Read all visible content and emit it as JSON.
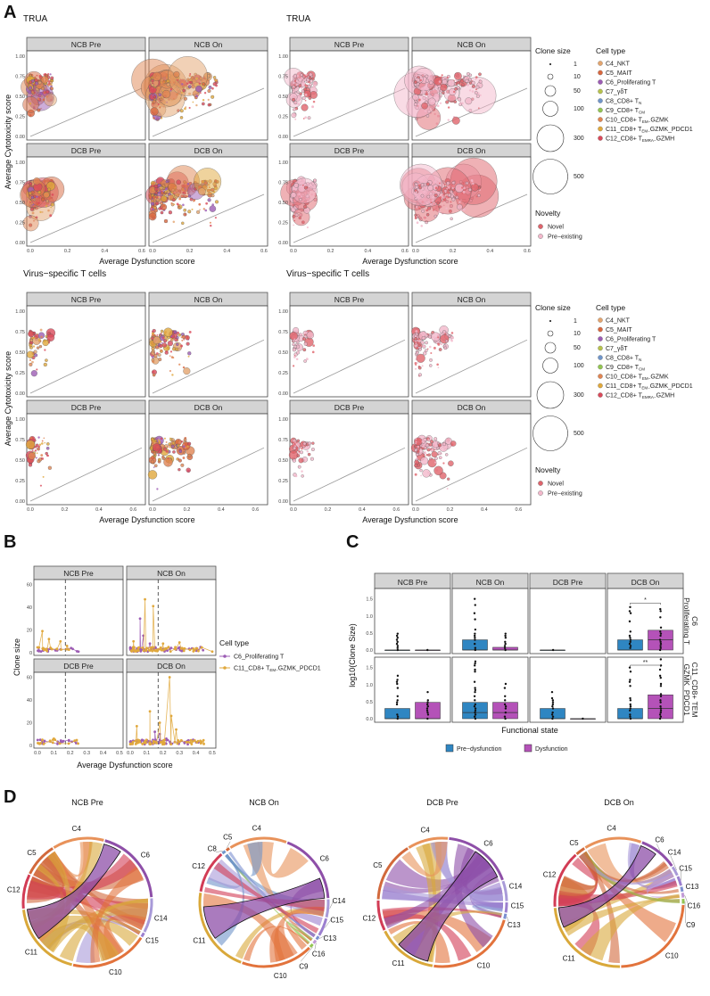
{
  "panel_labels": {
    "A": "A",
    "B": "B",
    "C": "C",
    "D": "D"
  },
  "colors": {
    "cell_types": {
      "C4_NKT": "#e3a46e",
      "C5_MAIT": "#d8673e",
      "C6_Proliferating T": "#9c5cb4",
      "C7_γδT": "#b7c24c",
      "C8_CD8+ TN": "#6f95c9",
      "C9_CD8+ TCM": "#93c552",
      "C10_CD8+ TEM-GZMK": "#e08552",
      "C11_CD8+ TEM-GZMK_PDCD1": "#e0a83c",
      "C12_CD8+ TEMRA-GZMH": "#d94a5a"
    },
    "novelty": {
      "Novel": "#e0646c",
      "Pre-existing": "#f3b8cb"
    },
    "box": {
      "Pre-dysfunction": "#2f86c2",
      "Dysfunction": "#b452b8"
    },
    "significance": "#e0353a"
  },
  "chart_data": [
    {
      "id": "A-TRUA-celltype",
      "type": "scatter",
      "title": "TRUA",
      "facets": [
        "NCB Pre",
        "NCB On",
        "DCB Pre",
        "DCB On"
      ],
      "xlabel": "Average Dysfunction score",
      "ylabel": "Average Cytotoxicity score",
      "xlim": [
        0,
        0.6
      ],
      "ylim": [
        0,
        1
      ],
      "xticks": [
        "0.0",
        "0.2",
        "0.4",
        "0.6"
      ],
      "yticks": [
        "0.00",
        "0.25",
        "0.50",
        "0.75",
        "1.00"
      ],
      "color_by": "Cell type",
      "size_by": "Clone size",
      "reference_line": "diagonal y = x"
    },
    {
      "id": "A-TRUA-novelty",
      "type": "scatter",
      "title": "TRUA",
      "facets": [
        "NCB Pre",
        "NCB On",
        "DCB Pre",
        "DCB On"
      ],
      "xlabel": "Average Dysfunction score",
      "xlim": [
        0,
        0.6
      ],
      "ylim": [
        0,
        1
      ],
      "xticks": [
        "0.0",
        "0.2",
        "0.4",
        "0.6"
      ],
      "yticks": [
        "0.00",
        "0.25",
        "0.50",
        "0.75",
        "1.00"
      ],
      "color_by": "Novelty",
      "size_by": "Clone size",
      "reference_line": "diagonal y = x"
    },
    {
      "id": "A-virus-celltype",
      "type": "scatter",
      "title": "Virus−specific T cells",
      "facets": [
        "NCB Pre",
        "NCB On",
        "DCB Pre",
        "DCB On"
      ],
      "xlabel": "Average Dysfunction score",
      "ylabel": "Average Cytotoxicity score",
      "xlim": [
        0,
        0.65
      ],
      "ylim": [
        0,
        1
      ],
      "xticks": [
        "0.0",
        "0.2",
        "0.4",
        "0.6"
      ],
      "yticks": [
        "0.00",
        "0.25",
        "0.50",
        "0.75",
        "1.00"
      ],
      "color_by": "Cell type",
      "size_by": "Clone size",
      "reference_line": "diagonal y = x"
    },
    {
      "id": "A-virus-novelty",
      "type": "scatter",
      "title": "Virus−specific T cells",
      "facets": [
        "NCB Pre",
        "NCB On",
        "DCB Pre",
        "DCB On"
      ],
      "xlabel": "Average Dysfunction score",
      "xlim": [
        0,
        0.65
      ],
      "ylim": [
        0,
        1
      ],
      "xticks": [
        "0.0",
        "0.2",
        "0.4",
        "0.6"
      ],
      "yticks": [
        "0.00",
        "0.25",
        "0.50",
        "0.75",
        "1.00"
      ],
      "color_by": "Novelty",
      "size_by": "Clone size",
      "reference_line": "diagonal y = x"
    },
    {
      "id": "B",
      "type": "line",
      "facets": [
        "NCB Pre",
        "NCB On",
        "DCB Pre",
        "DCB On"
      ],
      "xlabel": "Average Dysfunction score",
      "ylabel": "Clone size",
      "xlim": [
        0,
        0.5
      ],
      "ylim": [
        0,
        62
      ],
      "xticks": [
        "0.0",
        "0.1",
        "0.2",
        "0.3",
        "0.4",
        "0.5"
      ],
      "yticks": [
        "0",
        "20",
        "40",
        "60"
      ],
      "threshold_x": 0.17,
      "legend_title": "Cell type",
      "series": [
        {
          "name": "C6_Proliferating T",
          "peaks": {
            "NCB Pre": [
              [
                0.05,
                3
              ],
              [
                0.12,
                2
              ],
              [
                0.25,
                1
              ]
            ],
            "NCB On": [
              [
                0.06,
                30
              ],
              [
                0.08,
                15
              ],
              [
                0.12,
                8
              ]
            ],
            "DCB Pre": [
              [
                0.03,
                2
              ]
            ],
            "DCB On": [
              [
                0.15,
                12
              ],
              [
                0.18,
                10
              ],
              [
                0.22,
                6
              ]
            ]
          }
        },
        {
          "name": "C11_CD8+ TEM-GZMK_PDCD1",
          "peaks": {
            "NCB Pre": [
              [
                0.03,
                19
              ],
              [
                0.07,
                12
              ],
              [
                0.14,
                10
              ],
              [
                0.18,
                6
              ]
            ],
            "NCB On": [
              [
                0.02,
                10
              ],
              [
                0.09,
                47
              ],
              [
                0.14,
                41
              ],
              [
                0.2,
                8
              ],
              [
                0.3,
                9
              ],
              [
                0.5,
                1
              ]
            ],
            "DCB Pre": [
              [
                0.03,
                5
              ],
              [
                0.1,
                6
              ]
            ],
            "DCB On": [
              [
                0.04,
                17
              ],
              [
                0.12,
                30
              ],
              [
                0.18,
                20
              ],
              [
                0.24,
                60
              ],
              [
                0.25,
                26
              ],
              [
                0.28,
                14
              ]
            ]
          }
        }
      ]
    },
    {
      "id": "C",
      "type": "box",
      "facets_cols": [
        "NCB Pre",
        "NCB On",
        "DCB Pre",
        "DCB On"
      ],
      "facets_rows": [
        "C6\nProliferating T",
        "C11_CD8+ TEM\nGZMK_PDCD1"
      ],
      "xlabel": "Functional state",
      "ylabel": "log10(Clone Size)",
      "ylim": [
        0,
        1.7
      ],
      "yticks": [
        "0.0",
        "0.5",
        "1.0",
        "1.5"
      ],
      "legend": [
        "Pre−dysfunction",
        "Dysfunction"
      ],
      "boxes": [
        [
          {
            "pre": {
              "q1": 0,
              "med": 0,
              "q3": 0,
              "max_pt": 0.48
            },
            "dys": {
              "q1": 0,
              "med": 0,
              "q3": 0,
              "max_pt": 0
            }
          },
          {
            "pre": {
              "q1": 0,
              "med": 0,
              "q3": 0.3,
              "max_pt": 1.48
            },
            "dys": {
              "q1": 0,
              "med": 0,
              "q3": 0.08,
              "max_pt": 0.48
            }
          },
          {
            "pre": {
              "q1": 0,
              "med": 0,
              "q3": 0,
              "max_pt": 0
            },
            "dys": null
          },
          {
            "pre": {
              "q1": 0,
              "med": 0,
              "q3": 0.3,
              "max_pt": 1.26
            },
            "dys": {
              "q1": 0,
              "med": 0.3,
              "q3": 0.58,
              "max_pt": 1.2
            },
            "sig": "*"
          }
        ],
        [
          {
            "pre": {
              "q1": 0,
              "med": 0,
              "q3": 0.3,
              "max_pt": 1.26
            },
            "dys": {
              "q1": 0,
              "med": 0,
              "q3": 0.48,
              "max_pt": 0.78
            }
          },
          {
            "pre": {
              "q1": 0,
              "med": 0.18,
              "q3": 0.48,
              "max_pt": 1.68
            },
            "dys": {
              "q1": 0,
              "med": 0.18,
              "q3": 0.48,
              "max_pt": 1.0
            }
          },
          {
            "pre": {
              "q1": 0,
              "med": 0,
              "q3": 0.3,
              "max_pt": 0.78
            },
            "dys": {
              "q1": 0,
              "med": 0,
              "q3": 0,
              "max_pt": 0
            }
          },
          {
            "pre": {
              "q1": 0,
              "med": 0,
              "q3": 0.3,
              "max_pt": 1.48
            },
            "dys": {
              "q1": 0,
              "med": 0.3,
              "q3": 0.7,
              "max_pt": 1.76
            },
            "sig": "**"
          }
        ]
      ]
    },
    {
      "id": "D",
      "type": "chord",
      "diagrams": [
        {
          "title": "NCB Pre",
          "sectors": [
            "C4",
            "C6",
            "C14",
            "C15",
            "C10",
            "C11",
            "C12",
            "C5"
          ],
          "weights": [
            0.6,
            0.9,
            0.4,
            0.05,
            0.9,
            0.9,
            0.4,
            0.4
          ]
        },
        {
          "title": "NCB On",
          "sectors": [
            "C4",
            "C6",
            "C14",
            "C15",
            "C13",
            "C16",
            "C9",
            "C10",
            "C11",
            "C12",
            "C8",
            "C5"
          ],
          "weights": [
            0.8,
            1.0,
            0.25,
            0.25,
            0.05,
            0.05,
            0.05,
            1.0,
            1.2,
            0.6,
            0.05,
            0.05
          ]
        },
        {
          "title": "DCB Pre",
          "sectors": [
            "C4",
            "C6",
            "C14",
            "C15",
            "C13",
            "C10",
            "C11",
            "C12",
            "C5"
          ],
          "weights": [
            0.32,
            0.56,
            0.16,
            0.08,
            0.04,
            0.72,
            0.48,
            0.24,
            0.48
          ]
        },
        {
          "title": "DCB On",
          "sectors": [
            "C4",
            "C6",
            "C14",
            "C15",
            "C13",
            "C16",
            "C9",
            "C10",
            "C11",
            "C12",
            "C5"
          ],
          "weights": [
            0.6,
            0.4,
            0.1,
            0.1,
            0.05,
            0.05,
            0.05,
            1.0,
            1.0,
            0.6,
            0.1
          ]
        }
      ]
    }
  ],
  "legend_A": {
    "clone_size_title": "Clone size",
    "clone_sizes": [
      "1",
      "10",
      "50",
      "100",
      "300",
      "500"
    ],
    "cell_type_title": "Cell type",
    "cell_types": [
      {
        "name": "C4_NKT",
        "main": "C4_NKT",
        "sub": "",
        "rest": ""
      },
      {
        "name": "C5_MAIT",
        "main": "C5_MAIT",
        "sub": "",
        "rest": ""
      },
      {
        "name": "C6_Proliferating T",
        "main": "C6_Proliferating T",
        "sub": "",
        "rest": ""
      },
      {
        "name": "C7_γδT",
        "main": "C7_γδT",
        "sub": "",
        "rest": ""
      },
      {
        "name": "C8_CD8+ TN",
        "main": "C8_CD8+ T",
        "sub": "N",
        "rest": ""
      },
      {
        "name": "C9_CD8+ TCM",
        "main": "C9_CD8+ T",
        "sub": "CM",
        "rest": ""
      },
      {
        "name": "C10_CD8+ TEM-GZMK",
        "main": "C10_CD8+ T",
        "sub": "EM−",
        "rest": "GZMK"
      },
      {
        "name": "C11_CD8+ TEM-GZMK_PDCD1",
        "main": "C11_CD8+ T",
        "sub": "EM−",
        "rest": "GZMK_PDCD1"
      },
      {
        "name": "C12_CD8+ TEMRA-GZMH",
        "main": "C12_CD8+ T",
        "sub": "EMRA−",
        "rest": "GZMH"
      }
    ],
    "novelty_title": "Novelty",
    "novelty": [
      "Novel",
      "Pre−existing"
    ]
  },
  "legend_B": {
    "title": "Cell type",
    "items": [
      {
        "main": "C6_Proliferating T",
        "sub": "",
        "rest": ""
      },
      {
        "main": "C11_CD8+ T",
        "sub": "EM−",
        "rest": "GZMK_PDCD1"
      }
    ]
  }
}
